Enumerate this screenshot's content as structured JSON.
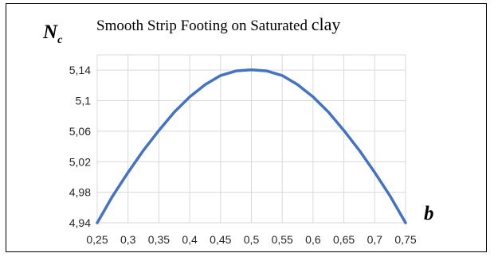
{
  "chart_data": {
    "type": "line",
    "title_main": "Smooth Strip Footing on Saturated ",
    "title_tail": "clay",
    "ylabel_main": "N",
    "ylabel_sub": "c",
    "xlabel": "b",
    "x_ticks": [
      "0,25",
      "0,3",
      "0,35",
      "0,4",
      "0,45",
      "0,5",
      "0,55",
      "0,6",
      "0,65",
      "0,7",
      "0,75"
    ],
    "y_ticks": [
      "4,94",
      "4,98",
      "5,02",
      "5,06",
      "5,1",
      "5,14"
    ],
    "xlim": [
      0.25,
      0.75
    ],
    "ylim": [
      4.94,
      5.16
    ],
    "grid": true,
    "series": [
      {
        "color": "#4472c4",
        "x": [
          0.25,
          0.275,
          0.3,
          0.325,
          0.35,
          0.375,
          0.4,
          0.425,
          0.45,
          0.475,
          0.5,
          0.525,
          0.55,
          0.575,
          0.6,
          0.625,
          0.65,
          0.675,
          0.7,
          0.725,
          0.75
        ],
        "y": [
          4.94,
          4.975,
          5.006,
          5.035,
          5.061,
          5.085,
          5.105,
          5.121,
          5.133,
          5.139,
          5.1405,
          5.139,
          5.133,
          5.121,
          5.105,
          5.085,
          5.061,
          5.035,
          5.006,
          4.975,
          4.94
        ]
      }
    ]
  }
}
